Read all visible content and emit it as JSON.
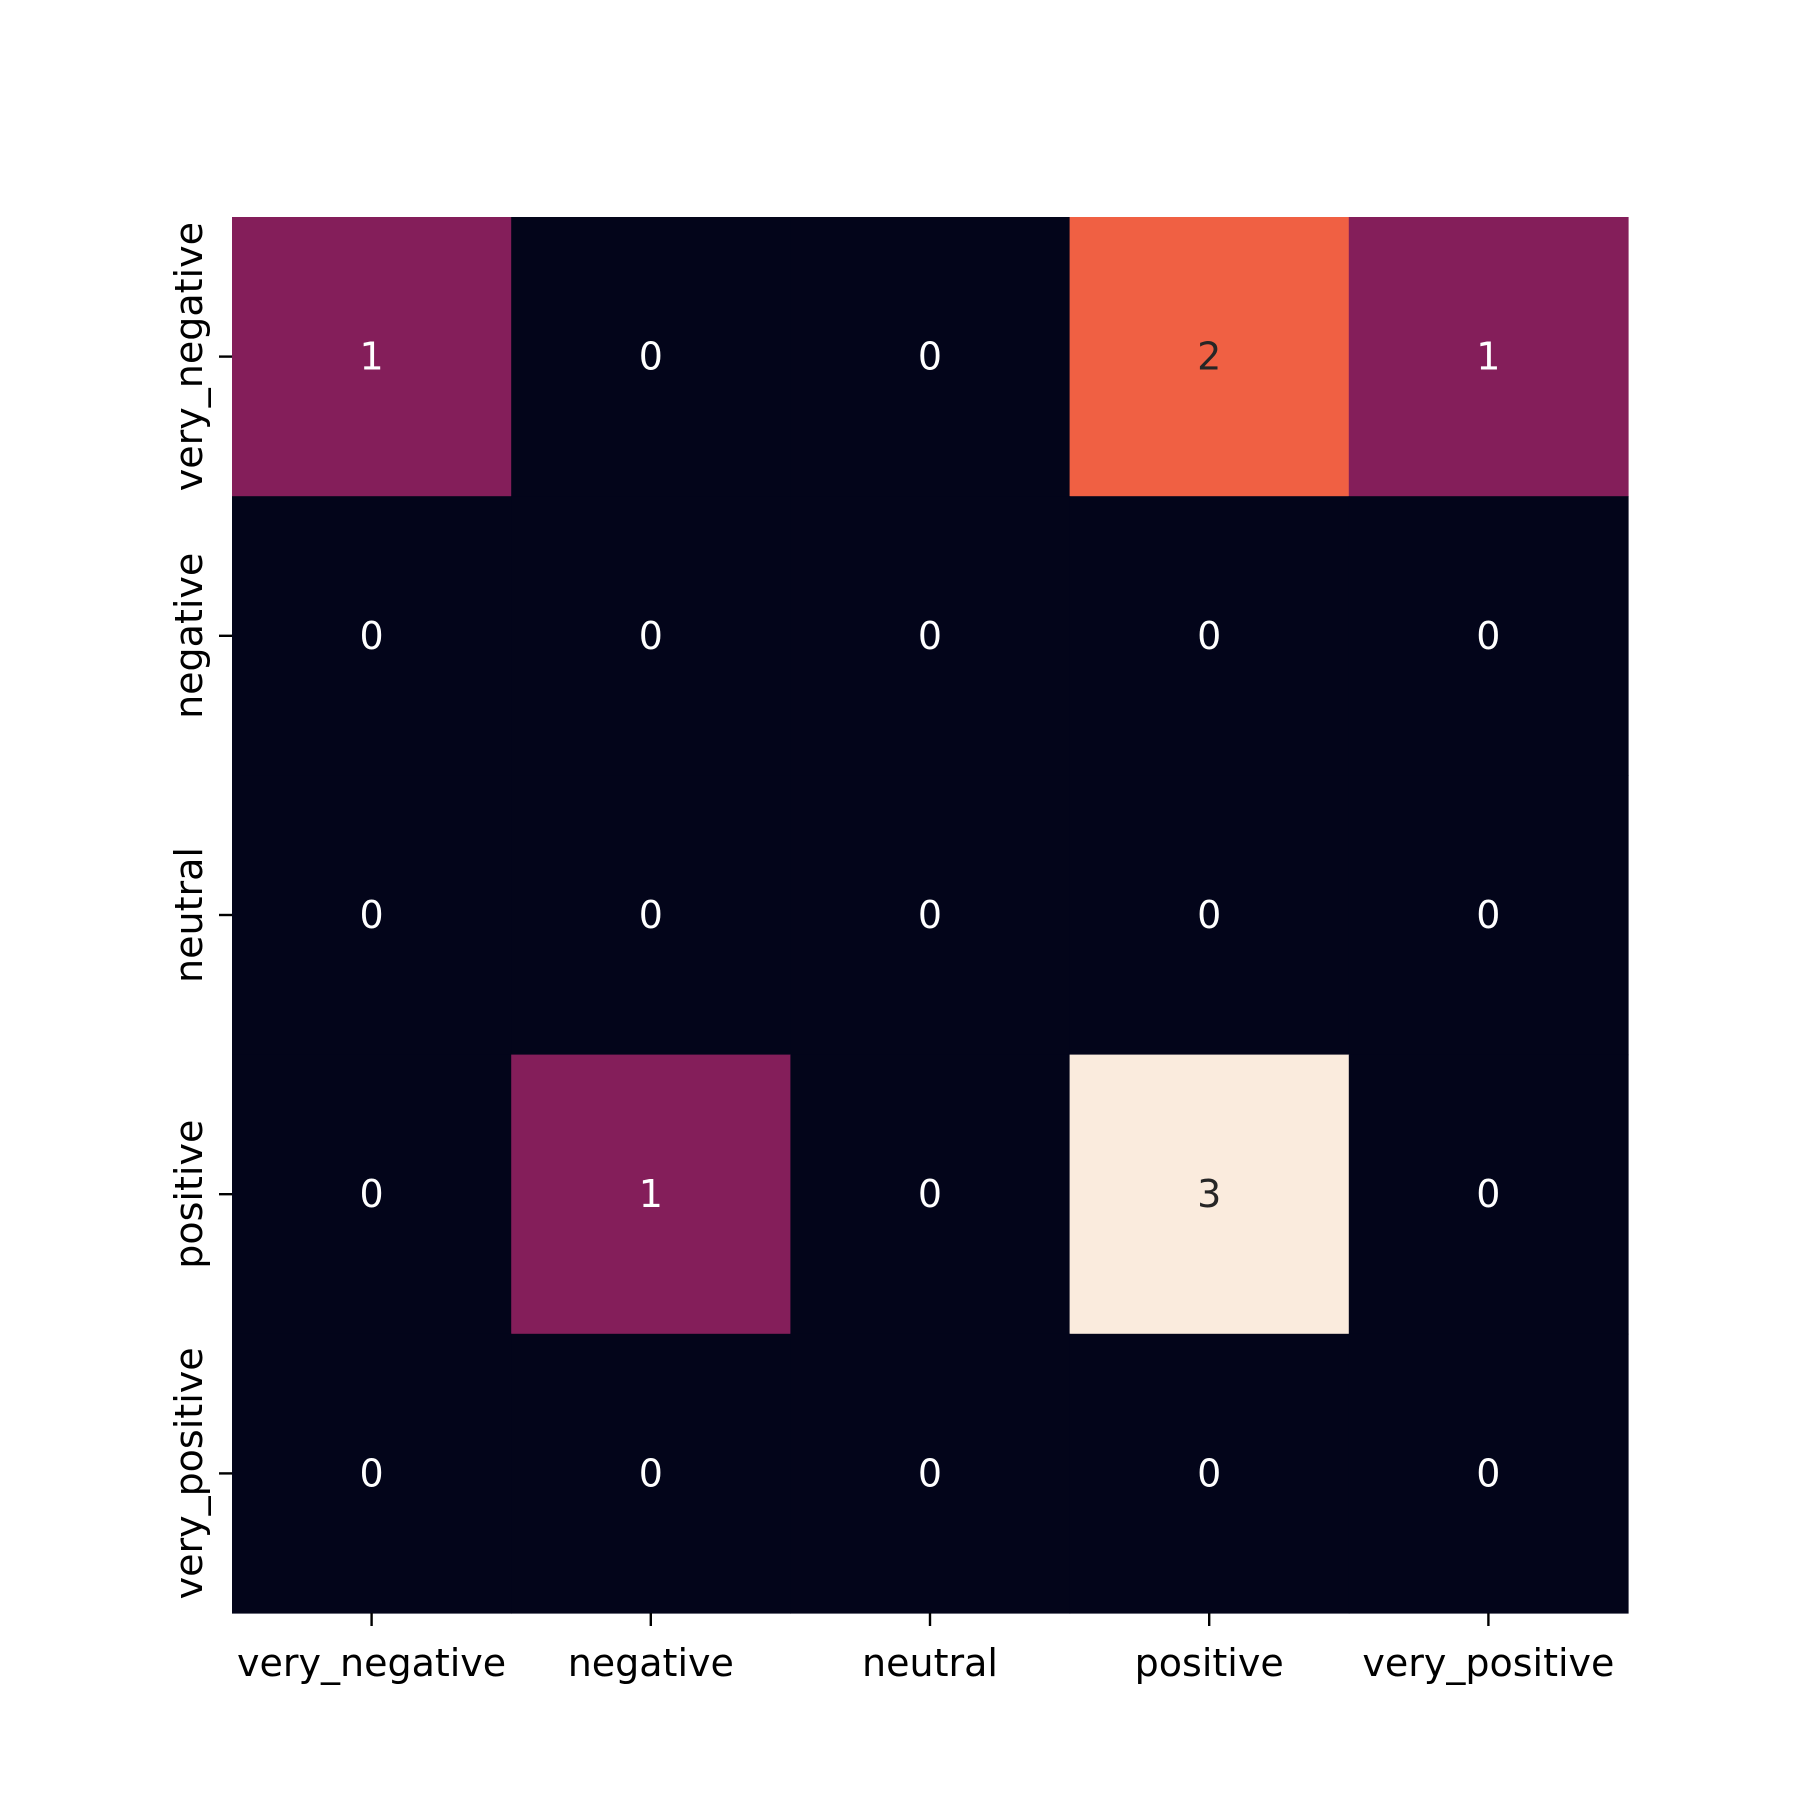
{
  "chart_data": {
    "type": "heatmap",
    "title": "",
    "xlabel": "",
    "ylabel": "",
    "x_categories": [
      "very_negative",
      "negative",
      "neutral",
      "positive",
      "very_positive"
    ],
    "y_categories": [
      "very_negative",
      "negative",
      "neutral",
      "positive",
      "very_positive"
    ],
    "values": [
      [
        1,
        0,
        0,
        2,
        1
      ],
      [
        0,
        0,
        0,
        0,
        0
      ],
      [
        0,
        0,
        0,
        0,
        0
      ],
      [
        0,
        1,
        0,
        3,
        0
      ],
      [
        0,
        0,
        0,
        0,
        0
      ]
    ],
    "value_range": [
      0,
      3
    ],
    "colormap": {
      "0": "#03051a",
      "1": "#841e5a",
      "2": "#f06043",
      "3": "#faebdd"
    },
    "annotation_colors": {
      "light": "#ffffff",
      "dark": "#262626"
    },
    "colorbar": false,
    "grid": false
  }
}
